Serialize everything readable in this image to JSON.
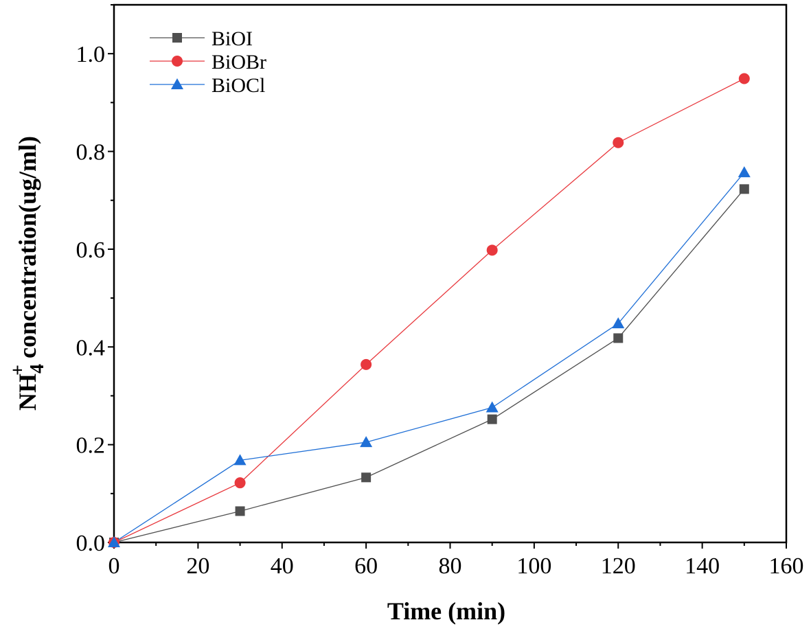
{
  "chart_data": {
    "type": "line",
    "title": "",
    "xlabel": "Time (min)",
    "ylabel": {
      "prefix": "NH",
      "subscript": "4",
      "superscript": "+",
      "suffix": " concentration(ug/ml)"
    },
    "xlim": [
      0,
      160
    ],
    "ylim": [
      0,
      1.1
    ],
    "xticks": [
      0,
      20,
      40,
      60,
      80,
      100,
      120,
      140,
      160
    ],
    "xtick_labels": [
      "0",
      "20",
      "40",
      "60",
      "80",
      "100",
      "120",
      "140",
      "160"
    ],
    "yticks": [
      0.0,
      0.2,
      0.4,
      0.6,
      0.8,
      1.0
    ],
    "ytick_labels": [
      "0.0",
      "0.2",
      "0.4",
      "0.6",
      "0.8",
      "1.0"
    ],
    "grid": false,
    "legend_position": "top-left",
    "x": [
      0,
      30,
      60,
      90,
      120,
      150
    ],
    "series": [
      {
        "name": "BiOI",
        "marker": "square",
        "color": "#505050",
        "values": [
          0.0,
          0.064,
          0.133,
          0.252,
          0.418,
          0.723
        ]
      },
      {
        "name": "BiOBr",
        "marker": "circle",
        "color": "#e8383d",
        "values": [
          0.0,
          0.122,
          0.364,
          0.598,
          0.818,
          0.949
        ]
      },
      {
        "name": "BiOCl",
        "marker": "triangle",
        "color": "#1f6fd6",
        "values": [
          0.0,
          0.168,
          0.205,
          0.276,
          0.448,
          0.757
        ]
      }
    ]
  }
}
